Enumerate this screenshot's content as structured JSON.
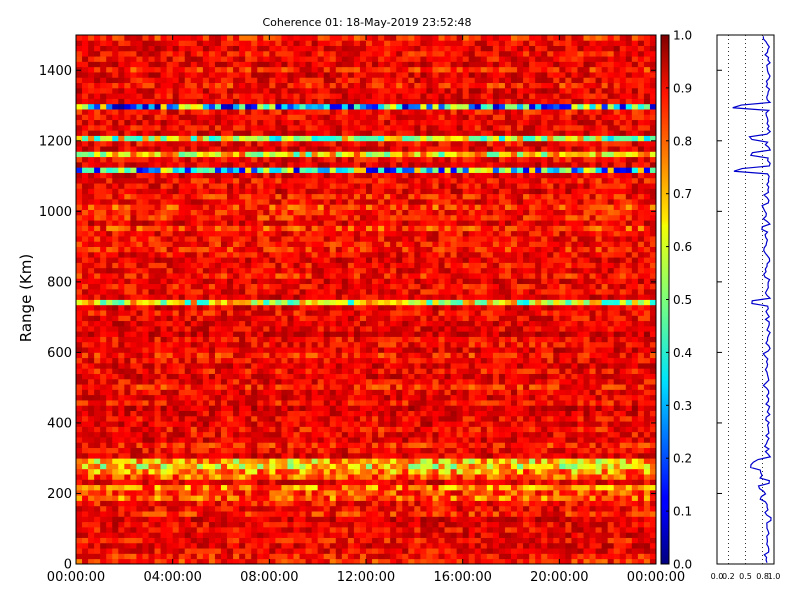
{
  "chart_data": [
    {
      "type": "heatmap",
      "title": "Coherence 01: 18-May-2019 23:52:48",
      "xlabel": "",
      "ylabel": "Range (Km)",
      "x_ticks": [
        "00:00:00",
        "04:00:00",
        "08:00:00",
        "12:00:00",
        "16:00:00",
        "20:00:00",
        "00:00:00"
      ],
      "y_ticks": [
        0,
        200,
        400,
        600,
        800,
        1000,
        1200,
        1400
      ],
      "xlim": [
        "18-May-2019 00:00:00",
        "19-May-2019 00:00:00"
      ],
      "ylim": [
        0,
        1500
      ],
      "range_resolution_km": 15,
      "time_columns": 96,
      "colormap": "jet",
      "colorbar": {
        "range": [
          0,
          1
        ],
        "ticks": [
          "0.0",
          "0.1",
          "0.2",
          "0.3",
          "0.4",
          "0.5",
          "0.6",
          "0.7",
          "0.8",
          "0.9",
          "1.0"
        ]
      },
      "grid": false,
      "row_mean_coherence": [
        0.84,
        0.86,
        0.88,
        0.9,
        0.87,
        0.9,
        0.88,
        0.89,
        0.92,
        0.85,
        0.88,
        0.87,
        0.78,
        0.82,
        0.75,
        0.9,
        0.78,
        0.72,
        0.65,
        0.68,
        0.9,
        0.88,
        0.85,
        0.9,
        0.88,
        0.87,
        0.9,
        0.88,
        0.9,
        0.92,
        0.87,
        0.9,
        0.89,
        0.85,
        0.88,
        0.9,
        0.87,
        0.9,
        0.88,
        0.85,
        0.9,
        0.87,
        0.88,
        0.92,
        0.89,
        0.9,
        0.88,
        0.87,
        0.9,
        0.58,
        0.9,
        0.88,
        0.87,
        0.9,
        0.85,
        0.88,
        0.87,
        0.9,
        0.88,
        0.85,
        0.86,
        0.87,
        0.88,
        0.82,
        0.9,
        0.85,
        0.86,
        0.82,
        0.88,
        0.85,
        0.9,
        0.88,
        0.87,
        0.9,
        0.38,
        0.9,
        0.88,
        0.62,
        0.9,
        0.88,
        0.55,
        0.9,
        0.88,
        0.9,
        0.88,
        0.87,
        0.35,
        0.9,
        0.88,
        0.9,
        0.85,
        0.88,
        0.9,
        0.85,
        0.9,
        0.88,
        0.87,
        0.9,
        0.88,
        0.85
      ]
    },
    {
      "type": "line",
      "title": "",
      "xlabel": "",
      "ylabel": "",
      "x_ticks": [
        "0.0",
        "0.2",
        "0.5",
        "0.8",
        "1.0"
      ],
      "xlim": [
        0,
        1
      ],
      "ylim": [
        0,
        1500
      ],
      "grid": "vertical dotted",
      "series": [
        {
          "color": "#0000cc",
          "y_step_km": 15,
          "x": [
            0.84,
            0.86,
            0.88,
            0.9,
            0.87,
            0.9,
            0.88,
            0.89,
            0.92,
            0.85,
            0.88,
            0.87,
            0.78,
            0.82,
            0.75,
            0.9,
            0.78,
            0.72,
            0.65,
            0.68,
            0.9,
            0.88,
            0.85,
            0.9,
            0.88,
            0.87,
            0.9,
            0.88,
            0.9,
            0.92,
            0.87,
            0.9,
            0.89,
            0.85,
            0.88,
            0.9,
            0.87,
            0.9,
            0.88,
            0.85,
            0.9,
            0.87,
            0.88,
            0.92,
            0.89,
            0.9,
            0.88,
            0.87,
            0.9,
            0.58,
            0.9,
            0.88,
            0.87,
            0.9,
            0.85,
            0.88,
            0.87,
            0.9,
            0.88,
            0.85,
            0.86,
            0.87,
            0.88,
            0.82,
            0.9,
            0.85,
            0.86,
            0.82,
            0.88,
            0.85,
            0.9,
            0.88,
            0.87,
            0.9,
            0.38,
            0.9,
            0.88,
            0.62,
            0.9,
            0.88,
            0.55,
            0.9,
            0.88,
            0.9,
            0.88,
            0.87,
            0.35,
            0.9,
            0.88,
            0.9,
            0.85,
            0.88,
            0.9,
            0.85,
            0.9,
            0.88,
            0.87,
            0.9,
            0.88,
            0.85
          ]
        }
      ]
    }
  ]
}
